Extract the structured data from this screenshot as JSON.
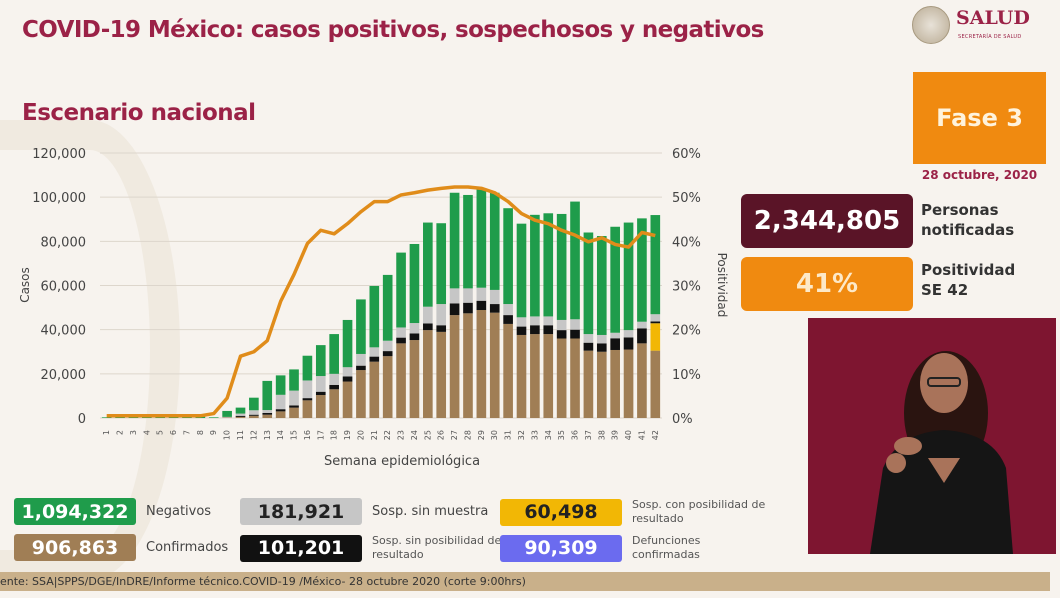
{
  "header": {
    "title": "COVID-19 México: casos positivos, sospechosos y negativos",
    "subtitle": "Escenario nacional"
  },
  "logo": {
    "main": "SALUD",
    "sub": "SECRETARÍA DE SALUD"
  },
  "phase": {
    "label": "Fase 3",
    "date": "28 octubre, 2020"
  },
  "kpis": [
    {
      "value": "2,344,805",
      "label_line1": "Personas",
      "label_line2": "notificadas"
    },
    {
      "value": "41%",
      "label_line1": "Positividad",
      "label_line2": "SE 42"
    }
  ],
  "legend": [
    {
      "value": "1,094,322",
      "label": "Negativos",
      "color": "#1f9c4b"
    },
    {
      "value": "181,921",
      "label": "Sosp. sin muestra",
      "color": "#c6c6c6",
      "text_color": "#222"
    },
    {
      "value": "60,498",
      "label": "Sosp. con posibilidad de resultado",
      "color": "#f2b705",
      "text_color": "#222"
    },
    {
      "value": "906,863",
      "label": "Confirmados",
      "color": "#a07e55"
    },
    {
      "value": "101,201",
      "label": "Sosp. sin posibilidad de resultado",
      "color": "#111111"
    },
    {
      "value": "90,309",
      "label": "Defunciones confirmadas",
      "color": "#6b6bef"
    }
  ],
  "footer": "ente: SSA|SPPS/DGE/InDRE/Informe técnico.COVID-19 /México- 28 octubre 2020 (corte 9:00hrs)",
  "chart_data": {
    "type": "bar",
    "stacked": true,
    "xlabel": "Semana epidemiológica",
    "ylabel": "Casos",
    "y2label": "Positividad",
    "ylim": [
      0,
      120000
    ],
    "y2lim": [
      0,
      60
    ],
    "yticks": [
      "0",
      "20,000",
      "40,000",
      "60,000",
      "80,000",
      "100,000",
      "120,000"
    ],
    "y2ticks": [
      "0%",
      "10%",
      "20%",
      "30%",
      "40%",
      "50%",
      "60%"
    ],
    "grid": true,
    "categories": [
      "1",
      "2",
      "3",
      "4",
      "5",
      "6",
      "7",
      "8",
      "9",
      "10",
      "11",
      "12",
      "13",
      "14",
      "15",
      "16",
      "17",
      "18",
      "19",
      "20",
      "21",
      "22",
      "23",
      "24",
      "25",
      "26",
      "27",
      "28",
      "29",
      "30",
      "31",
      "32",
      "33",
      "34",
      "35",
      "36",
      "37",
      "38",
      "39",
      "40",
      "41",
      "42"
    ],
    "series": [
      {
        "name": "Confirmados",
        "color": "#a07e55",
        "values": [
          0,
          0,
          0,
          0,
          0,
          0,
          0,
          0,
          0,
          200,
          500,
          1000,
          1500,
          3000,
          4700,
          8000,
          10400,
          13000,
          16500,
          21700,
          25500,
          28000,
          33800,
          35300,
          39800,
          39000,
          46600,
          47400,
          48900,
          47700,
          42600,
          37600,
          38000,
          38000,
          36000,
          36000,
          30500,
          30000,
          30800,
          31000,
          33800,
          30500
        ]
      },
      {
        "name": "Sosp. con posibilidad de resultado",
        "color": "#f2b705",
        "values": [
          0,
          0,
          0,
          0,
          0,
          0,
          0,
          0,
          0,
          0,
          0,
          0,
          0,
          0,
          0,
          0,
          0,
          0,
          0,
          0,
          0,
          0,
          0,
          0,
          0,
          0,
          0,
          0,
          0,
          0,
          0,
          0,
          0,
          0,
          0,
          0,
          0,
          0,
          0,
          0,
          0,
          12400
        ]
      },
      {
        "name": "Sosp. sin posibilidad de resultado",
        "color": "#111111",
        "values": [
          0,
          0,
          0,
          0,
          0,
          0,
          0,
          0,
          0,
          0,
          500,
          500,
          800,
          1000,
          1000,
          1000,
          1500,
          2000,
          2300,
          2000,
          2300,
          2300,
          2600,
          3000,
          3000,
          3000,
          5300,
          4800,
          4200,
          3900,
          4000,
          3800,
          4000,
          4000,
          3800,
          4000,
          3600,
          3800,
          5300,
          5500,
          6800,
          800
        ]
      },
      {
        "name": "Sosp. sin muestra",
        "color": "#c6c6c6",
        "values": [
          0,
          0,
          0,
          0,
          0,
          0,
          0,
          0,
          0,
          300,
          1000,
          2000,
          1300,
          6500,
          6700,
          8000,
          7100,
          5000,
          4200,
          5300,
          4200,
          4700,
          4600,
          4700,
          7600,
          9600,
          6800,
          6500,
          5900,
          6400,
          5000,
          4200,
          4000,
          4000,
          4600,
          4700,
          3900,
          3800,
          2500,
          3300,
          3000,
          3300
        ]
      },
      {
        "name": "Negativos",
        "color": "#1f9c4b",
        "values": [
          300,
          1500,
          1800,
          1800,
          1700,
          1700,
          1700,
          1500,
          300,
          2700,
          2700,
          5700,
          13200,
          8800,
          9600,
          11200,
          14000,
          18000,
          21400,
          24700,
          27800,
          29800,
          33900,
          35800,
          38100,
          36600,
          43300,
          42300,
          45000,
          44000,
          43400,
          42400,
          46000,
          46700,
          48000,
          53300,
          46000,
          44800,
          48000,
          48700,
          46800,
          44900
        ]
      }
    ],
    "line": {
      "name": "Positividad",
      "color": "#e08c1a",
      "axis": "right",
      "values": [
        0.5,
        0.5,
        0.5,
        0.5,
        0.5,
        0.5,
        0.5,
        0.5,
        1,
        4.5,
        14,
        15,
        17.5,
        26.4,
        32.5,
        39.5,
        42.5,
        41.7,
        44,
        46.7,
        49,
        49,
        50.5,
        51,
        51.6,
        52,
        52.3,
        52.3,
        52,
        51,
        49,
        46.3,
        44.8,
        44,
        42.5,
        41.4,
        39.9,
        40.8,
        39.3,
        38.7,
        42,
        41.3
      ]
    }
  }
}
